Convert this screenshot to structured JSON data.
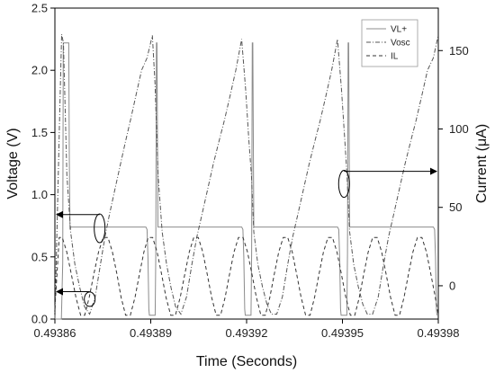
{
  "chart_data": {
    "type": "line",
    "xlabel": "Time (Seconds)",
    "ylabel_left": "Voltage (V)",
    "ylabel_right": "Current (μA)",
    "xlim": [
      0.49386,
      0.49398
    ],
    "ylim_left": [
      0,
      2.5
    ],
    "ylim_right": [
      -21.25,
      177.1
    ],
    "x_ticks": [
      0.49386,
      0.49389,
      0.49392,
      0.49395,
      0.49398
    ],
    "x_tick_labels": [
      "0.49386",
      "0.49389",
      "0.49392",
      "0.49395",
      "0.49398"
    ],
    "y_left_ticks": [
      0,
      0.5,
      1.0,
      1.5,
      2.0,
      2.5
    ],
    "y_left_tick_labels": [
      "0.0",
      "0.5",
      "1.0",
      "1.5",
      "2.0",
      "2.5"
    ],
    "y_right_ticks": [
      0,
      50,
      100,
      150
    ],
    "y_right_tick_labels": [
      "0",
      "50",
      "100",
      "150"
    ],
    "grid": false,
    "legend_position": "top-right",
    "series": [
      {
        "name": "VL+",
        "axis": "left",
        "style": "solid",
        "color": "#8c8c8c",
        "x": [
          0.49386,
          0.49386204,
          0.49386246,
          0.49386262,
          0.49386433,
          0.49386452,
          0.49386473,
          0.49386494,
          0.49386526,
          0.49386631,
          0.49386905,
          0.49386926,
          0.49387262,
          0.49388848,
          0.49388884,
          0.49388912,
          0.49388942,
          0.49388958,
          0.49389138,
          0.49389157,
          0.49389178,
          0.49389195,
          0.49389226,
          0.49389331,
          0.49389623,
          0.49389644,
          0.4938998,
          0.49391848,
          0.49391884,
          0.49391912,
          0.49391942,
          0.49391958,
          0.49392138,
          0.49392157,
          0.49392178,
          0.49392195,
          0.49392226,
          0.49392331,
          0.49392623,
          0.49392644,
          0.4939298,
          0.49394848,
          0.49394884,
          0.49394912,
          0.49394942,
          0.49394958,
          0.49395138,
          0.49395157,
          0.49395178,
          0.49395195,
          0.49395226,
          0.49395331,
          0.49395623,
          0.49395644,
          0.4939598,
          0.49397848,
          0.49397884,
          0.49397912,
          0.49397942,
          0.49397958
        ],
        "y": [
          0.0,
          0.0,
          0.45,
          2.22,
          2.22,
          1.3,
          0.72,
          0.74,
          0.74,
          0.74,
          0.74,
          0.74,
          0.74,
          0.74,
          0.72,
          0.5,
          0.08,
          0.03,
          0.03,
          0.52,
          2.22,
          2.22,
          0.74,
          0.74,
          0.74,
          0.74,
          0.74,
          0.74,
          0.72,
          0.5,
          0.08,
          0.03,
          0.03,
          0.52,
          2.22,
          2.22,
          0.74,
          0.74,
          0.74,
          0.74,
          0.74,
          0.74,
          0.72,
          0.5,
          0.08,
          0.03,
          0.03,
          0.52,
          2.22,
          2.22,
          0.74,
          0.74,
          0.74,
          0.74,
          0.74,
          0.74,
          0.72,
          0.5,
          0.08,
          0.03
        ]
      },
      {
        "name": "Vosc",
        "axis": "left",
        "style": "dashdot",
        "color": "#555555",
        "x": [
          0.49386,
          0.49386166,
          0.49386212,
          0.49386268,
          0.49386376,
          0.49386494,
          0.49386626,
          0.49386773,
          0.49386926,
          0.49387087,
          0.49387262,
          0.49387425,
          0.49387565,
          0.49387707,
          0.49387875,
          0.49388047,
          0.49388203,
          0.49388366,
          0.49388538,
          0.49388713,
          0.49388884,
          0.49389052,
          0.49389131,
          0.49389187,
          0.49389231,
          0.49389357,
          0.49389497,
          0.49389637,
          0.49389778,
          0.49389945,
          0.4939012,
          0.49390287,
          0.49390441,
          0.49390602,
          0.49390778,
          0.49390952,
          0.49391126,
          0.49391308,
          0.49391486,
          0.49391663,
          0.49391845,
          0.4939197,
          0.49392068,
          0.49392152,
          0.49392224,
          0.49392353,
          0.49392497,
          0.49392637,
          0.49392778,
          0.49392945,
          0.4939312,
          0.49393287,
          0.49393441,
          0.49393602,
          0.49393778,
          0.49393952,
          0.49394126,
          0.49394308,
          0.49394486,
          0.49394663,
          0.49394845,
          0.4939497,
          0.4939507,
          0.49395144,
          0.49395224,
          0.49395353,
          0.49395497,
          0.49395637,
          0.49395778,
          0.49395945,
          0.4939612,
          0.49396287,
          0.49396441,
          0.49396602,
          0.49396778,
          0.49396952,
          0.49397126,
          0.49397308,
          0.49397486,
          0.49397663,
          0.49397845,
          0.49397998
        ],
        "y": [
          0.0,
          1.82,
          2.29,
          2.22,
          1.16,
          0.7,
          0.44,
          0.26,
          0.1,
          0.04,
          0.18,
          0.44,
          0.66,
          0.84,
          1.04,
          1.24,
          1.42,
          1.6,
          1.8,
          2.0,
          2.1,
          2.28,
          1.9,
          1.5,
          1.15,
          0.7,
          0.44,
          0.25,
          0.1,
          0.04,
          0.18,
          0.44,
          0.66,
          0.84,
          1.04,
          1.24,
          1.42,
          1.6,
          1.8,
          2.0,
          2.25,
          1.85,
          1.45,
          1.15,
          0.7,
          0.44,
          0.26,
          0.12,
          0.04,
          0.04,
          0.18,
          0.44,
          0.66,
          0.84,
          1.04,
          1.24,
          1.42,
          1.6,
          1.8,
          2.0,
          2.25,
          1.85,
          1.45,
          1.15,
          0.7,
          0.44,
          0.26,
          0.12,
          0.04,
          0.04,
          0.18,
          0.44,
          0.66,
          0.84,
          1.04,
          1.24,
          1.42,
          1.6,
          1.8,
          2.0,
          2.1,
          2.28
        ]
      },
      {
        "name": "IL",
        "axis": "right",
        "style": "dashed",
        "color": "#333333",
        "x": [
          0.49386,
          0.49386134,
          0.49386232,
          0.49386372,
          0.49386512,
          0.49386659,
          0.49386806,
          0.49386933,
          0.49387073,
          0.4938722,
          0.49387367,
          0.49387514,
          0.49387661,
          0.493878,
          0.4938794,
          0.49388073,
          0.49388213,
          0.4938836,
          0.49388507,
          0.49388647,
          0.49388787,
          0.49388919,
          0.49389059,
          0.49389199,
          0.49389339,
          0.49389479,
          0.49389626,
          0.49389773,
          0.4938992,
          0.49390067,
          0.49390207,
          0.49390347,
          0.49390487,
          0.49390627,
          0.49390767,
          0.49390907,
          0.49391047,
          0.49391187,
          0.49391327,
          0.49391467,
          0.49391607,
          0.49391747,
          0.49391887,
          0.49392027,
          0.49392167,
          0.49392307,
          0.49392447,
          0.49392587,
          0.49392727,
          0.49392867,
          0.49393007,
          0.49393147,
          0.49393287,
          0.49393427,
          0.49393567,
          0.49393707,
          0.49393847,
          0.49393987,
          0.49394127,
          0.49394267,
          0.49394407,
          0.49394547,
          0.49394687,
          0.49394827,
          0.49394967,
          0.49395107,
          0.49395247,
          0.49395387,
          0.49395527,
          0.49395667,
          0.49395807,
          0.49395947,
          0.49396087,
          0.49396227,
          0.49396367,
          0.49396507,
          0.49396647,
          0.49396787,
          0.49396927,
          0.49397067,
          0.49397207,
          0.49397347,
          0.49397487,
          0.49397627,
          0.49397767,
          0.49397907,
          0.49398
        ],
        "y": [
          -14.5,
          30.8,
          30.8,
          21.5,
          7.5,
          -7.5,
          -18.8,
          -18.8,
          -7.5,
          7.5,
          21.5,
          30.8,
          30.8,
          21.5,
          7.5,
          -7.5,
          -18.8,
          -18.8,
          -7.5,
          7.5,
          21.5,
          30.8,
          30.8,
          21.5,
          7.5,
          -7.5,
          -18.8,
          -18.8,
          -7.5,
          7.5,
          21.5,
          30.8,
          30.8,
          21.5,
          7.5,
          -7.5,
          -18.8,
          -18.8,
          -7.5,
          7.5,
          21.5,
          30.8,
          30.8,
          21.5,
          7.5,
          -7.5,
          -18.8,
          -18.8,
          -7.5,
          7.5,
          21.5,
          30.8,
          30.8,
          21.5,
          7.5,
          -7.5,
          -18.8,
          -18.8,
          -7.5,
          7.5,
          21.5,
          30.8,
          30.8,
          21.5,
          7.5,
          -7.5,
          -18.8,
          -18.8,
          -7.5,
          7.5,
          21.5,
          30.8,
          30.8,
          21.5,
          7.5,
          -7.5,
          -18.8,
          -18.8,
          -7.5,
          7.5,
          21.5,
          30.8,
          30.8,
          21.5,
          7.5,
          -7.5,
          -18.8
        ]
      }
    ],
    "annotations": [
      {
        "type": "ellipse-arrow",
        "points_to": "left-axis",
        "ellipse_x": 0.493874,
        "ellipse_y": 0.73,
        "arrow_to_y": 0.84
      },
      {
        "type": "ellipse-arrow",
        "points_to": "left-axis",
        "ellipse_x": 0.4938709,
        "ellipse_y": 0.16,
        "arrow_to_y": 0.22
      },
      {
        "type": "ellipse-arrow",
        "points_to": "right-axis",
        "ellipse_x": 0.4939505,
        "ellipse_y_right": 65,
        "arrow_to_y_right": 73
      }
    ]
  }
}
